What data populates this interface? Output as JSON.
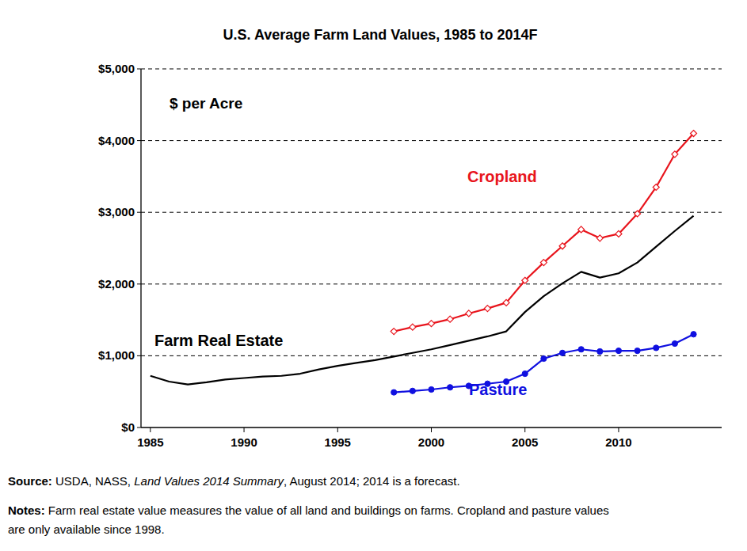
{
  "chart_data": {
    "type": "line",
    "title": "U.S. Average Farm Land Values, 1985 to 2014F",
    "y_label": "$ per Acre",
    "x": [
      1985,
      1986,
      1987,
      1988,
      1989,
      1990,
      1991,
      1992,
      1993,
      1994,
      1995,
      1996,
      1997,
      1998,
      1999,
      2000,
      2001,
      2002,
      2003,
      2004,
      2005,
      2006,
      2007,
      2008,
      2009,
      2010,
      2011,
      2012,
      2013,
      2014
    ],
    "series": [
      {
        "name": "Farm Real Estate",
        "color": "#000000",
        "marker": "none",
        "values": [
          720,
          640,
          600,
          630,
          670,
          690,
          710,
          720,
          750,
          810,
          860,
          900,
          940,
          990,
          1040,
          1090,
          1150,
          1210,
          1270,
          1340,
          1610,
          1830,
          2010,
          2170,
          2090,
          2150,
          2300,
          2520,
          2740,
          2950
        ]
      },
      {
        "name": "Cropland",
        "color": "#e8141c",
        "marker": "diamond",
        "values": [
          null,
          null,
          null,
          null,
          null,
          null,
          null,
          null,
          null,
          null,
          null,
          null,
          null,
          1340,
          1400,
          1450,
          1510,
          1590,
          1660,
          1740,
          2050,
          2300,
          2530,
          2760,
          2640,
          2700,
          2980,
          3350,
          3810,
          4100
        ]
      },
      {
        "name": "Pasture",
        "color": "#1010e0",
        "marker": "circle",
        "values": [
          null,
          null,
          null,
          null,
          null,
          null,
          null,
          null,
          null,
          null,
          null,
          null,
          null,
          490,
          510,
          530,
          560,
          580,
          610,
          640,
          750,
          960,
          1040,
          1090,
          1060,
          1070,
          1070,
          1110,
          1170,
          1300
        ]
      }
    ],
    "xlim": [
      1984.5,
      2015.5
    ],
    "xticks": [
      1985,
      1990,
      1995,
      2000,
      2005,
      2010
    ],
    "ylim": [
      0,
      5000
    ],
    "yticks": [
      {
        "value": 0,
        "label": "$0"
      },
      {
        "value": 1000,
        "label": "$1,000"
      },
      {
        "value": 2000,
        "label": "$2,000"
      },
      {
        "value": 3000,
        "label": "$3,000"
      },
      {
        "value": 4000,
        "label": "$4,000"
      },
      {
        "value": 5000,
        "label": "$5,000"
      }
    ],
    "grid": true,
    "footnotes": [
      {
        "label": "Source:",
        "parts": [
          "USDA, NASS, ",
          "Land Values 2014 Summary",
          ", August 2014; 2014 is a forecast."
        ]
      },
      {
        "label": "Notes:",
        "parts": [
          "Farm real estate value measures the value of all land and buildings on farms. Cropland and pasture values",
          "are only available since 1998."
        ]
      }
    ]
  }
}
